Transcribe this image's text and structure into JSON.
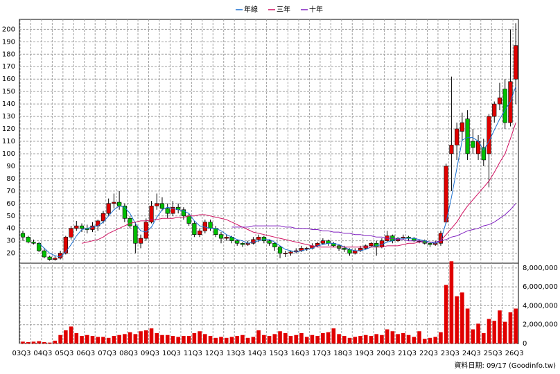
{
  "chart_data": {
    "type": "candlestick",
    "legend": [
      "年線",
      "三年",
      "十年"
    ],
    "footer": "資料日期: 09/17 (Goodinfo.tw)",
    "categories": [
      "03Q3",
      null,
      null,
      null,
      "04Q3",
      null,
      null,
      null,
      "05Q3",
      null,
      null,
      null,
      "06Q3",
      null,
      null,
      null,
      "07Q3",
      null,
      null,
      null,
      "08Q3",
      null,
      null,
      null,
      "09Q3",
      null,
      null,
      null,
      "10Q3",
      null,
      null,
      null,
      "11Q3",
      null,
      null,
      null,
      "12Q3",
      null,
      null,
      null,
      "13Q3",
      null,
      null,
      null,
      "14Q3",
      null,
      null,
      null,
      "15Q3",
      null,
      null,
      null,
      "16Q3",
      null,
      null,
      null,
      "17Q3",
      null,
      null,
      null,
      "18Q3",
      null,
      null,
      null,
      "19Q3",
      null,
      null,
      null,
      "20Q3",
      null,
      null,
      null,
      "21Q3",
      null,
      null,
      null,
      "22Q3",
      null,
      null,
      null,
      "23Q3",
      null,
      null,
      null,
      "24Q3",
      null,
      null,
      null,
      "25Q3",
      null,
      null,
      null,
      "26Q3"
    ],
    "up_color": "#e00000",
    "down_color": "#00c000",
    "candles": [
      [
        36,
        38,
        30,
        33
      ],
      [
        33,
        34,
        28,
        29
      ],
      [
        29,
        31,
        27,
        28
      ],
      [
        28,
        29,
        21,
        22
      ],
      [
        22,
        24,
        16,
        17
      ],
      [
        17,
        18,
        14,
        15
      ],
      [
        15,
        18,
        14,
        16
      ],
      [
        16,
        22,
        15,
        20
      ],
      [
        20,
        34,
        19,
        33
      ],
      [
        33,
        42,
        31,
        40
      ],
      [
        40,
        46,
        38,
        42
      ],
      [
        42,
        44,
        37,
        40
      ],
      [
        40,
        43,
        36,
        39
      ],
      [
        39,
        45,
        37,
        42
      ],
      [
        42,
        47,
        38,
        46
      ],
      [
        46,
        54,
        44,
        52
      ],
      [
        52,
        64,
        50,
        60
      ],
      [
        60,
        68,
        56,
        61
      ],
      [
        61,
        70,
        55,
        58
      ],
      [
        58,
        60,
        45,
        48
      ],
      [
        48,
        50,
        40,
        42
      ],
      [
        42,
        45,
        20,
        28
      ],
      [
        28,
        35,
        24,
        32
      ],
      [
        32,
        48,
        30,
        45
      ],
      [
        45,
        62,
        44,
        58
      ],
      [
        58,
        68,
        55,
        60
      ],
      [
        60,
        65,
        54,
        56
      ],
      [
        56,
        60,
        48,
        52
      ],
      [
        52,
        62,
        50,
        57
      ],
      [
        57,
        60,
        52,
        55
      ],
      [
        55,
        57,
        47,
        50
      ],
      [
        50,
        52,
        42,
        44
      ],
      [
        44,
        46,
        33,
        35
      ],
      [
        35,
        40,
        33,
        38
      ],
      [
        38,
        47,
        36,
        45
      ],
      [
        45,
        47,
        38,
        40
      ],
      [
        40,
        42,
        33,
        35
      ],
      [
        35,
        37,
        28,
        32
      ],
      [
        32,
        35,
        30,
        33
      ],
      [
        33,
        34,
        28,
        30
      ],
      [
        30,
        31,
        26,
        28
      ],
      [
        28,
        29,
        25,
        27
      ],
      [
        27,
        30,
        26,
        28
      ],
      [
        28,
        33,
        27,
        31
      ],
      [
        31,
        35,
        29,
        33
      ],
      [
        33,
        34,
        28,
        30
      ],
      [
        30,
        31,
        26,
        28
      ],
      [
        28,
        29,
        22,
        25
      ],
      [
        25,
        26,
        16,
        20
      ],
      [
        20,
        22,
        17,
        20
      ],
      [
        20,
        22,
        18,
        21
      ],
      [
        21,
        24,
        20,
        22
      ],
      [
        22,
        26,
        21,
        24
      ],
      [
        24,
        25,
        22,
        24
      ],
      [
        24,
        28,
        23,
        26
      ],
      [
        26,
        29,
        25,
        28
      ],
      [
        28,
        32,
        27,
        30
      ],
      [
        30,
        31,
        26,
        28
      ],
      [
        28,
        29,
        25,
        26
      ],
      [
        26,
        27,
        22,
        24
      ],
      [
        24,
        26,
        21,
        23
      ],
      [
        23,
        24,
        18,
        20
      ],
      [
        20,
        24,
        19,
        22
      ],
      [
        22,
        26,
        21,
        24
      ],
      [
        24,
        27,
        23,
        26
      ],
      [
        26,
        29,
        25,
        28
      ],
      [
        28,
        30,
        18,
        25
      ],
      [
        25,
        32,
        24,
        30
      ],
      [
        30,
        38,
        29,
        34
      ],
      [
        34,
        35,
        28,
        30
      ],
      [
        30,
        33,
        29,
        32
      ],
      [
        32,
        35,
        31,
        33
      ],
      [
        33,
        34,
        30,
        32
      ],
      [
        32,
        33,
        29,
        30
      ],
      [
        30,
        31,
        28,
        30
      ],
      [
        30,
        31,
        27,
        28
      ],
      [
        28,
        29,
        25,
        27
      ],
      [
        27,
        30,
        26,
        28
      ],
      [
        28,
        38,
        26,
        36
      ],
      [
        45,
        92,
        44,
        90
      ],
      [
        100,
        162,
        70,
        107
      ],
      [
        107,
        125,
        95,
        120
      ],
      [
        118,
        133,
        110,
        125
      ],
      [
        128,
        135,
        95,
        100
      ],
      [
        110,
        120,
        100,
        105
      ],
      [
        100,
        115,
        95,
        110
      ],
      [
        105,
        112,
        90,
        95
      ],
      [
        100,
        132,
        73,
        130
      ],
      [
        130,
        142,
        125,
        140
      ],
      [
        140,
        157,
        135,
        145
      ],
      [
        152,
        160,
        120,
        125
      ],
      [
        125,
        200,
        122,
        158
      ],
      [
        160,
        205,
        140,
        187
      ]
    ],
    "series": [
      {
        "name": "年線",
        "color": "#1a6fd0",
        "values": [
          null,
          null,
          null,
          28,
          24,
          20,
          18,
          17,
          21,
          27,
          34,
          39,
          40,
          41,
          42,
          45,
          50,
          55,
          58,
          57,
          52,
          44,
          38,
          37,
          41,
          49,
          55,
          57,
          56,
          55,
          54,
          52,
          46,
          42,
          41,
          40,
          40,
          38,
          35,
          33,
          31,
          30,
          28,
          29,
          30,
          31,
          31,
          29,
          26,
          23,
          22,
          21,
          22,
          23,
          24,
          26,
          27,
          28,
          28,
          27,
          25,
          23,
          22,
          22,
          23,
          25,
          26,
          27,
          29,
          30,
          32,
          32,
          32,
          32,
          31,
          30,
          29,
          28,
          30,
          45,
          65,
          88,
          111,
          113,
          113,
          110,
          103,
          110,
          119,
          128,
          135,
          142,
          154
        ]
      },
      {
        "name": "三年",
        "color": "#d01060",
        "values": [
          null,
          null,
          null,
          null,
          null,
          null,
          null,
          null,
          null,
          null,
          null,
          28,
          29,
          30,
          31,
          33,
          36,
          38,
          40,
          42,
          44,
          45,
          46,
          46,
          47,
          47,
          48,
          48,
          48,
          49,
          49,
          50,
          50,
          51,
          51,
          50,
          49,
          48,
          47,
          45,
          43,
          41,
          39,
          37,
          36,
          35,
          34,
          33,
          32,
          31,
          30,
          29,
          28,
          27,
          26,
          25,
          25,
          25,
          25,
          25,
          25,
          25,
          25,
          25,
          25,
          25,
          25,
          25,
          26,
          26,
          26,
          27,
          28,
          28,
          29,
          29,
          29,
          29,
          30,
          35,
          40,
          45,
          52,
          58,
          63,
          68,
          73,
          78,
          85,
          93,
          100,
          112,
          125
        ]
      },
      {
        "name": "十年",
        "color": "#8020c0",
        "values": [
          null,
          null,
          null,
          null,
          null,
          null,
          null,
          null,
          null,
          null,
          null,
          null,
          null,
          null,
          null,
          null,
          null,
          null,
          null,
          null,
          null,
          null,
          null,
          null,
          null,
          null,
          null,
          null,
          null,
          null,
          null,
          null,
          null,
          null,
          null,
          null,
          null,
          null,
          null,
          41,
          41,
          41,
          41,
          42,
          42,
          42,
          42,
          42,
          42,
          41,
          41,
          40,
          40,
          40,
          39,
          39,
          38,
          38,
          37,
          37,
          36,
          36,
          35,
          35,
          34,
          34,
          33,
          33,
          32,
          32,
          31,
          31,
          30,
          30,
          30,
          29,
          29,
          29,
          30,
          31,
          33,
          34,
          36,
          38,
          39,
          40,
          42,
          43,
          45,
          48,
          51,
          55,
          60
        ]
      }
    ],
    "volume": {
      "color": "#e00000",
      "values": [
        200000,
        150000,
        200000,
        250000,
        150000,
        100000,
        300000,
        900000,
        1400000,
        1800000,
        1100000,
        800000,
        900000,
        800000,
        700000,
        700000,
        600000,
        800000,
        900000,
        1000000,
        1200000,
        1000000,
        1300000,
        1400000,
        1600000,
        1100000,
        900000,
        900000,
        800000,
        700000,
        800000,
        800000,
        1100000,
        1300000,
        1000000,
        800000,
        600000,
        700000,
        600000,
        700000,
        800000,
        900000,
        600000,
        700000,
        1400000,
        900000,
        800000,
        1000000,
        1300000,
        1100000,
        800000,
        900000,
        1100000,
        700000,
        900000,
        800000,
        1100000,
        1200000,
        1600000,
        1000000,
        800000,
        600000,
        700000,
        800000,
        900000,
        800000,
        1000000,
        900000,
        1500000,
        1300000,
        1000000,
        1100000,
        900000,
        700000,
        1300000,
        500000,
        600000,
        700000,
        1200000,
        6200000,
        8700000,
        5000000,
        5400000,
        3700000,
        1500000,
        2100000,
        1100000,
        2600000,
        2400000,
        3500000,
        2300000,
        3300000,
        3700000
      ],
      "axis": "y2"
    },
    "ylim": [
      12,
      208
    ],
    "yticks": [
      20,
      30,
      40,
      50,
      60,
      70,
      80,
      90,
      100,
      110,
      120,
      130,
      140,
      150,
      160,
      170,
      180,
      190,
      200
    ],
    "y2lim": [
      0,
      8500000
    ],
    "y2ticks": [
      0,
      {
        "value": 2000000,
        "label": "2,000,000"
      },
      {
        "value": 4000000,
        "label": "4,000,000"
      },
      {
        "value": 6000000,
        "label": "6,000,000"
      },
      {
        "value": 8000000,
        "label": "8,000,000"
      }
    ],
    "grid": true
  }
}
